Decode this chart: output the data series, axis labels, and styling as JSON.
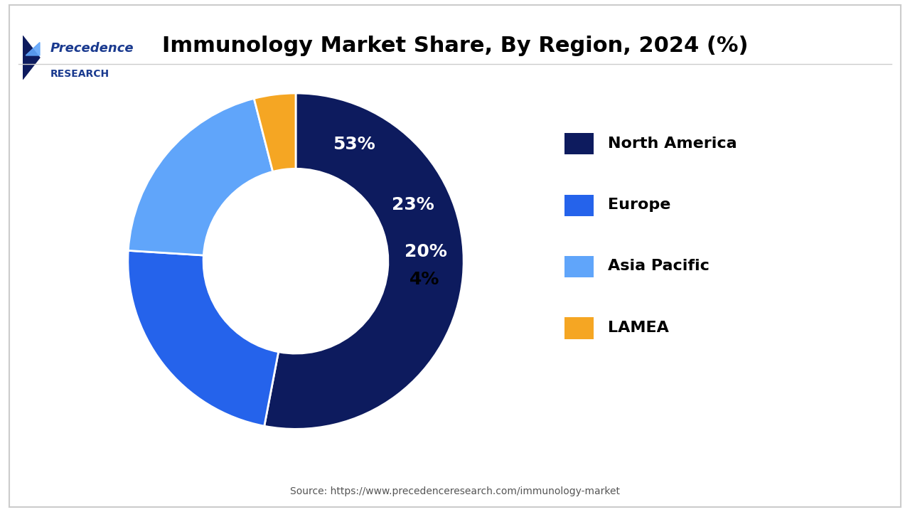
{
  "title": "Immunology Market Share, By Region, 2024 (%)",
  "labels": [
    "North America",
    "Europe",
    "Asia Pacific",
    "LAMEA"
  ],
  "values": [
    53,
    23,
    20,
    4
  ],
  "colors": [
    "#0d1b5e",
    "#2563eb",
    "#60a5fa",
    "#f5a623"
  ],
  "pct_labels": [
    "53%",
    "23%",
    "20%",
    "4%"
  ],
  "pct_colors": [
    "white",
    "white",
    "white",
    "black"
  ],
  "source_text": "Source: https://www.precedenceresearch.com/immunology-market",
  "background_color": "#ffffff",
  "title_fontsize": 22,
  "legend_fontsize": 16,
  "pct_fontsize": 18,
  "donut_width": 0.45,
  "logo_text_line1": "Precedence",
  "logo_text_line2": "RESEARCH"
}
